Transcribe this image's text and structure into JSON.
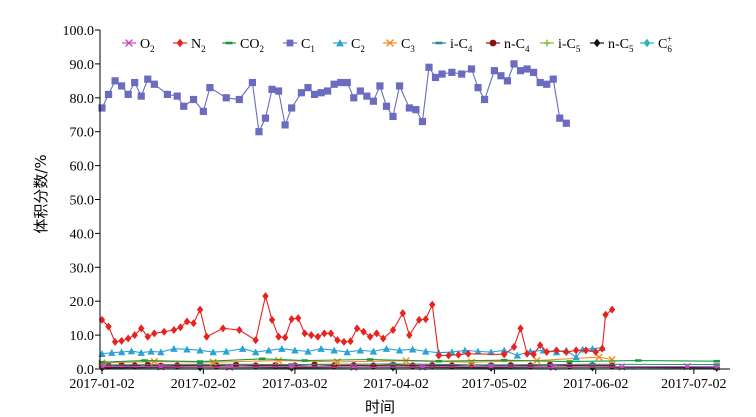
{
  "chart_data": {
    "type": "line",
    "title": "",
    "xlabel": "时间",
    "ylabel": "体积分数/%",
    "ylim": [
      0,
      100
    ],
    "yticks": [
      "0.0",
      "10.0",
      "20.0",
      "30.0",
      "40.0",
      "50.0",
      "60.0",
      "70.0",
      "80.0",
      "90.0",
      "100.0"
    ],
    "xticks": [
      "2017-01-02",
      "2017-02-02",
      "2017-03-02",
      "2017-04-02",
      "2017-05-02",
      "2017-06-02",
      "2017-07-02"
    ],
    "x_range": [
      "2017-01-02",
      "2017-07-10"
    ],
    "legend_placement": "top",
    "grid": false,
    "series": [
      {
        "name": "O2",
        "label_base": "O",
        "label_sub": "2",
        "label_sup": "",
        "color": "#c64bc0",
        "marker": "cross",
        "points": [
          [
            "2017-01-02",
            0.8
          ],
          [
            "2017-01-20",
            0.6
          ],
          [
            "2017-02-10",
            0.5
          ],
          [
            "2017-03-01",
            0.7
          ],
          [
            "2017-03-20",
            0.5
          ],
          [
            "2017-04-10",
            0.6
          ],
          [
            "2017-05-01",
            0.7
          ],
          [
            "2017-05-20",
            0.5
          ],
          [
            "2017-06-10",
            0.6
          ],
          [
            "2017-06-30",
            0.7
          ],
          [
            "2017-07-09",
            0.6
          ]
        ]
      },
      {
        "name": "N2",
        "label_base": "N",
        "label_sub": "2",
        "label_sup": "",
        "color": "#e8231f",
        "marker": "diamond",
        "points": [
          [
            "2017-01-02",
            14.5
          ],
          [
            "2017-01-04",
            12.5
          ],
          [
            "2017-01-06",
            8
          ],
          [
            "2017-01-08",
            8.3
          ],
          [
            "2017-01-10",
            9
          ],
          [
            "2017-01-12",
            10
          ],
          [
            "2017-01-14",
            12
          ],
          [
            "2017-01-16",
            9.5
          ],
          [
            "2017-01-18",
            10.5
          ],
          [
            "2017-01-21",
            11
          ],
          [
            "2017-01-24",
            11.5
          ],
          [
            "2017-01-26",
            12.3
          ],
          [
            "2017-01-28",
            14
          ],
          [
            "2017-01-30",
            13.5
          ],
          [
            "2017-02-01",
            17.5
          ],
          [
            "2017-02-03",
            9.5
          ],
          [
            "2017-02-08",
            12
          ],
          [
            "2017-02-13",
            11.5
          ],
          [
            "2017-02-18",
            8.5
          ],
          [
            "2017-02-21",
            21.5
          ],
          [
            "2017-02-23",
            14.5
          ],
          [
            "2017-02-25",
            9.5
          ],
          [
            "2017-02-27",
            9.3
          ],
          [
            "2017-03-01",
            14.7
          ],
          [
            "2017-03-03",
            15
          ],
          [
            "2017-03-05",
            10.5
          ],
          [
            "2017-03-07",
            10
          ],
          [
            "2017-03-09",
            9.5
          ],
          [
            "2017-03-11",
            10.5
          ],
          [
            "2017-03-13",
            10.5
          ],
          [
            "2017-03-15",
            8.5
          ],
          [
            "2017-03-17",
            8
          ],
          [
            "2017-03-19",
            8.2
          ],
          [
            "2017-03-21",
            12
          ],
          [
            "2017-03-23",
            11
          ],
          [
            "2017-03-25",
            9.5
          ],
          [
            "2017-03-27",
            10.5
          ],
          [
            "2017-03-29",
            9
          ],
          [
            "2017-04-01",
            11.5
          ],
          [
            "2017-04-04",
            16.5
          ],
          [
            "2017-04-06",
            10
          ],
          [
            "2017-04-09",
            14.5
          ],
          [
            "2017-04-11",
            14.7
          ],
          [
            "2017-04-13",
            19
          ],
          [
            "2017-04-15",
            4
          ],
          [
            "2017-04-18",
            4
          ],
          [
            "2017-04-21",
            4.2
          ],
          [
            "2017-04-24",
            4.5
          ],
          [
            "2017-05-05",
            4.3
          ],
          [
            "2017-05-08",
            6.5
          ],
          [
            "2017-05-10",
            12
          ],
          [
            "2017-05-12",
            4.5
          ],
          [
            "2017-05-14",
            4.3
          ],
          [
            "2017-05-16",
            7
          ],
          [
            "2017-05-18",
            5
          ],
          [
            "2017-05-21",
            5.5
          ],
          [
            "2017-05-24",
            5
          ],
          [
            "2017-05-27",
            5.5
          ],
          [
            "2017-05-30",
            5.5
          ],
          [
            "2017-06-02",
            5
          ],
          [
            "2017-06-04",
            6
          ],
          [
            "2017-06-05",
            16
          ],
          [
            "2017-06-07",
            17.5
          ]
        ]
      },
      {
        "name": "CO2",
        "label_base": "CO",
        "label_sub": "2",
        "label_sup": "",
        "color": "#1a9a3b",
        "marker": "line",
        "points": [
          [
            "2017-01-02",
            2
          ],
          [
            "2017-01-15",
            2.5
          ],
          [
            "2017-02-01",
            2.2
          ],
          [
            "2017-02-20",
            3
          ],
          [
            "2017-03-05",
            2.5
          ],
          [
            "2017-03-25",
            2.8
          ],
          [
            "2017-04-15",
            2.3
          ],
          [
            "2017-05-05",
            2.6
          ],
          [
            "2017-05-25",
            2.2
          ],
          [
            "2017-06-15",
            2.5
          ],
          [
            "2017-07-09",
            2.3
          ]
        ]
      },
      {
        "name": "C1",
        "label_base": "C",
        "label_sub": "1",
        "label_sup": "",
        "color": "#6b6bc0",
        "marker": "square",
        "points": [
          [
            "2017-01-02",
            77
          ],
          [
            "2017-01-04",
            81
          ],
          [
            "2017-01-06",
            85
          ],
          [
            "2017-01-08",
            83.5
          ],
          [
            "2017-01-10",
            81
          ],
          [
            "2017-01-12",
            84.5
          ],
          [
            "2017-01-14",
            80.5
          ],
          [
            "2017-01-16",
            85.5
          ],
          [
            "2017-01-18",
            84
          ],
          [
            "2017-01-22",
            81
          ],
          [
            "2017-01-25",
            80.5
          ],
          [
            "2017-01-27",
            77.5
          ],
          [
            "2017-01-30",
            79.5
          ],
          [
            "2017-02-02",
            76
          ],
          [
            "2017-02-04",
            83
          ],
          [
            "2017-02-09",
            80
          ],
          [
            "2017-02-13",
            79.5
          ],
          [
            "2017-02-17",
            84.5
          ],
          [
            "2017-02-19",
            70
          ],
          [
            "2017-02-21",
            74
          ],
          [
            "2017-02-23",
            82.5
          ],
          [
            "2017-02-25",
            82
          ],
          [
            "2017-02-27",
            72
          ],
          [
            "2017-03-01",
            77
          ],
          [
            "2017-03-04",
            81.5
          ],
          [
            "2017-03-06",
            83
          ],
          [
            "2017-03-08",
            81
          ],
          [
            "2017-03-10",
            81.5
          ],
          [
            "2017-03-12",
            82
          ],
          [
            "2017-03-14",
            84
          ],
          [
            "2017-03-16",
            84.5
          ],
          [
            "2017-03-18",
            84.5
          ],
          [
            "2017-03-20",
            80
          ],
          [
            "2017-03-22",
            82
          ],
          [
            "2017-03-24",
            80.5
          ],
          [
            "2017-03-26",
            79
          ],
          [
            "2017-03-28",
            83.5
          ],
          [
            "2017-03-30",
            77.5
          ],
          [
            "2017-04-01",
            74.5
          ],
          [
            "2017-04-03",
            83.5
          ],
          [
            "2017-04-06",
            77
          ],
          [
            "2017-04-08",
            76.5
          ],
          [
            "2017-04-10",
            73
          ],
          [
            "2017-04-12",
            89
          ],
          [
            "2017-04-14",
            86
          ],
          [
            "2017-04-16",
            87
          ],
          [
            "2017-04-19",
            87.5
          ],
          [
            "2017-04-22",
            87
          ],
          [
            "2017-04-25",
            88.5
          ],
          [
            "2017-04-27",
            83
          ],
          [
            "2017-04-29",
            79.5
          ],
          [
            "2017-05-02",
            88
          ],
          [
            "2017-05-04",
            86.5
          ],
          [
            "2017-05-06",
            85
          ],
          [
            "2017-05-08",
            90
          ],
          [
            "2017-05-10",
            88
          ],
          [
            "2017-05-12",
            88.5
          ],
          [
            "2017-05-14",
            87.5
          ],
          [
            "2017-05-16",
            84.5
          ],
          [
            "2017-05-18",
            84
          ],
          [
            "2017-05-20",
            85.5
          ],
          [
            "2017-05-22",
            74
          ],
          [
            "2017-05-24",
            72.5
          ]
        ]
      },
      {
        "name": "C2",
        "label_base": "C",
        "label_sub": "2",
        "label_sup": "",
        "color": "#29a3d6",
        "marker": "triangle",
        "points": [
          [
            "2017-01-02",
            4.5
          ],
          [
            "2017-01-05",
            4.8
          ],
          [
            "2017-01-08",
            5
          ],
          [
            "2017-01-11",
            5.3
          ],
          [
            "2017-01-14",
            4.8
          ],
          [
            "2017-01-17",
            5.2
          ],
          [
            "2017-01-20",
            5
          ],
          [
            "2017-01-24",
            6
          ],
          [
            "2017-01-28",
            5.8
          ],
          [
            "2017-02-01",
            5.5
          ],
          [
            "2017-02-05",
            5
          ],
          [
            "2017-02-09",
            5.2
          ],
          [
            "2017-02-14",
            6
          ],
          [
            "2017-02-18",
            5
          ],
          [
            "2017-02-22",
            5.5
          ],
          [
            "2017-02-26",
            6
          ],
          [
            "2017-03-02",
            5.5
          ],
          [
            "2017-03-06",
            5.2
          ],
          [
            "2017-03-10",
            6
          ],
          [
            "2017-03-14",
            5.5
          ],
          [
            "2017-03-18",
            5
          ],
          [
            "2017-03-22",
            5.5
          ],
          [
            "2017-03-26",
            5.2
          ],
          [
            "2017-03-30",
            6
          ],
          [
            "2017-04-03",
            5.5
          ],
          [
            "2017-04-07",
            5.8
          ],
          [
            "2017-04-11",
            5.2
          ],
          [
            "2017-04-15",
            4.8
          ],
          [
            "2017-04-19",
            5
          ],
          [
            "2017-04-23",
            5.5
          ],
          [
            "2017-04-27",
            5.2
          ],
          [
            "2017-05-01",
            5
          ],
          [
            "2017-05-05",
            5.5
          ],
          [
            "2017-05-09",
            4
          ],
          [
            "2017-05-13",
            5.2
          ],
          [
            "2017-05-17",
            5.5
          ],
          [
            "2017-05-21",
            5
          ],
          [
            "2017-05-24",
            5.5
          ],
          [
            "2017-05-27",
            3.5
          ],
          [
            "2017-05-29",
            5.8
          ],
          [
            "2017-06-01",
            6
          ],
          [
            "2017-06-04",
            6.3
          ]
        ]
      },
      {
        "name": "C3",
        "label_base": "C",
        "label_sub": "3",
        "label_sup": "",
        "color": "#f08c1e",
        "marker": "cross",
        "points": [
          [
            "2017-01-02",
            1.8
          ],
          [
            "2017-01-18",
            2.2
          ],
          [
            "2017-02-05",
            2
          ],
          [
            "2017-02-25",
            2.5
          ],
          [
            "2017-03-15",
            2.1
          ],
          [
            "2017-04-05",
            2.4
          ],
          [
            "2017-04-25",
            2
          ],
          [
            "2017-05-15",
            2.5
          ],
          [
            "2017-06-03",
            3.5
          ],
          [
            "2017-06-07",
            2.8
          ]
        ]
      },
      {
        "name": "i-C4",
        "label_base": "i-C",
        "label_sub": "4",
        "label_sup": "",
        "color": "#2a8a96",
        "marker": "line",
        "points": [
          [
            "2017-01-02",
            1.2
          ],
          [
            "2017-02-01",
            1.4
          ],
          [
            "2017-03-01",
            1.3
          ],
          [
            "2017-04-01",
            1.5
          ],
          [
            "2017-05-01",
            1.2
          ],
          [
            "2017-06-01",
            1.4
          ],
          [
            "2017-07-09",
            1.3
          ]
        ]
      },
      {
        "name": "n-C4",
        "label_base": "n-C",
        "label_sub": "4",
        "label_sup": "",
        "color": "#8b0e12",
        "marker": "circle",
        "points": [
          [
            "2017-01-02",
            1
          ],
          [
            "2017-01-04",
            0.9
          ],
          [
            "2017-01-08",
            1.1
          ],
          [
            "2017-01-12",
            1
          ],
          [
            "2017-01-16",
            1.2
          ],
          [
            "2017-01-20",
            0.9
          ],
          [
            "2017-01-25",
            1
          ],
          [
            "2017-02-01",
            1.1
          ],
          [
            "2017-02-06",
            1
          ],
          [
            "2017-02-12",
            1.2
          ],
          [
            "2017-02-18",
            1
          ],
          [
            "2017-02-24",
            1.1
          ],
          [
            "2017-03-02",
            1
          ],
          [
            "2017-03-08",
            1.3
          ],
          [
            "2017-03-14",
            1
          ],
          [
            "2017-03-20",
            1.1
          ],
          [
            "2017-03-26",
            1
          ],
          [
            "2017-04-01",
            1.2
          ],
          [
            "2017-04-07",
            1
          ],
          [
            "2017-04-13",
            1.1
          ],
          [
            "2017-04-19",
            1
          ],
          [
            "2017-04-25",
            1.2
          ],
          [
            "2017-05-01",
            1
          ],
          [
            "2017-05-07",
            1.1
          ],
          [
            "2017-05-13",
            1
          ],
          [
            "2017-05-19",
            1.2
          ],
          [
            "2017-05-25",
            1
          ],
          [
            "2017-06-01",
            1.1
          ],
          [
            "2017-06-07",
            1
          ]
        ]
      },
      {
        "name": "i-C5",
        "label_base": "i-C",
        "label_sub": "5",
        "label_sup": "",
        "color": "#7bbf3a",
        "marker": "plus",
        "points": [
          [
            "2017-01-02",
            0.7
          ],
          [
            "2017-02-01",
            0.8
          ],
          [
            "2017-03-01",
            0.7
          ],
          [
            "2017-04-01",
            0.9
          ],
          [
            "2017-05-01",
            0.7
          ],
          [
            "2017-06-01",
            0.8
          ],
          [
            "2017-07-09",
            0.7
          ]
        ]
      },
      {
        "name": "n-C5",
        "label_base": "n-C",
        "label_sub": "5",
        "label_sup": "",
        "color": "#111111",
        "marker": "diamond",
        "points": [
          [
            "2017-01-02",
            0.4
          ],
          [
            "2017-02-01",
            0.5
          ],
          [
            "2017-03-01",
            0.4
          ],
          [
            "2017-04-01",
            0.5
          ],
          [
            "2017-05-01",
            0.4
          ],
          [
            "2017-06-01",
            0.5
          ],
          [
            "2017-07-09",
            0.4
          ]
        ]
      },
      {
        "name": "C6+",
        "label_base": "C",
        "label_sub": "6",
        "label_sup": "+",
        "color": "#2eb4b4",
        "marker": "diamond",
        "points": [
          [
            "2017-01-02",
            0.3
          ],
          [
            "2017-02-01",
            0.4
          ],
          [
            "2017-03-01",
            0.3
          ],
          [
            "2017-04-01",
            0.4
          ],
          [
            "2017-05-01",
            0.3
          ],
          [
            "2017-06-01",
            0.4
          ],
          [
            "2017-07-09",
            0.3
          ]
        ]
      }
    ]
  }
}
